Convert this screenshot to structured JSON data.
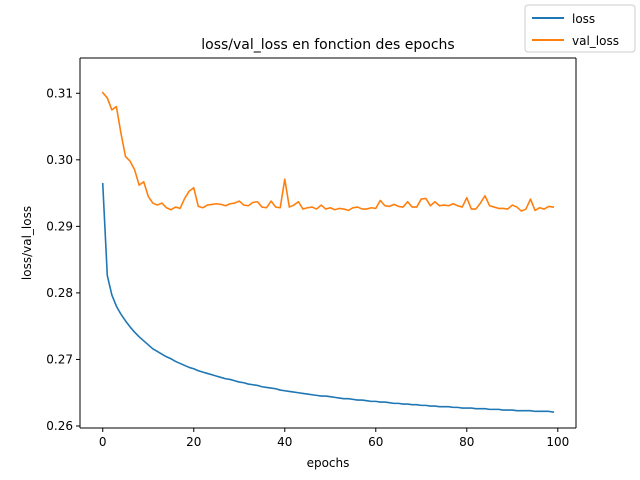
{
  "chart_data": {
    "type": "line",
    "title": "loss/val_loss en fonction des epochs",
    "xlabel": "epochs",
    "ylabel": "loss/val_loss",
    "xlim": [
      -5.0,
      104.0
    ],
    "ylim": [
      0.2597,
      0.3153
    ],
    "xticks": [
      0,
      20,
      40,
      60,
      80,
      100
    ],
    "xtick_labels": [
      "0",
      "20",
      "40",
      "60",
      "80",
      "100"
    ],
    "yticks": [
      0.26,
      0.27,
      0.28,
      0.29,
      0.3,
      0.31
    ],
    "ytick_labels": [
      "0.26",
      "0.27",
      "0.28",
      "0.29",
      "0.30",
      "0.31"
    ],
    "grid": false,
    "legend_position": "top-right (outside axes)",
    "x": [
      0,
      1,
      2,
      3,
      4,
      5,
      6,
      7,
      8,
      9,
      10,
      11,
      12,
      13,
      14,
      15,
      16,
      17,
      18,
      19,
      20,
      21,
      22,
      23,
      24,
      25,
      26,
      27,
      28,
      29,
      30,
      31,
      32,
      33,
      34,
      35,
      36,
      37,
      38,
      39,
      40,
      41,
      42,
      43,
      44,
      45,
      46,
      47,
      48,
      49,
      50,
      51,
      52,
      53,
      54,
      55,
      56,
      57,
      58,
      59,
      60,
      61,
      62,
      63,
      64,
      65,
      66,
      67,
      68,
      69,
      70,
      71,
      72,
      73,
      74,
      75,
      76,
      77,
      78,
      79,
      80,
      81,
      82,
      83,
      84,
      85,
      86,
      87,
      88,
      89,
      90,
      91,
      92,
      93,
      94,
      95,
      96,
      97,
      98,
      99
    ],
    "series": [
      {
        "name": "loss",
        "color": "#1f77b4",
        "values": [
          0.2964,
          0.2826,
          0.2797,
          0.278,
          0.2768,
          0.2758,
          0.2749,
          0.2741,
          0.2734,
          0.2728,
          0.2722,
          0.2716,
          0.2712,
          0.2708,
          0.2704,
          0.2701,
          0.2697,
          0.2694,
          0.2691,
          0.2688,
          0.2686,
          0.2683,
          0.2681,
          0.2679,
          0.2677,
          0.2675,
          0.2673,
          0.2671,
          0.267,
          0.2668,
          0.2666,
          0.2665,
          0.2663,
          0.2662,
          0.2661,
          0.2659,
          0.2658,
          0.2657,
          0.2656,
          0.2654,
          0.2653,
          0.2652,
          0.2651,
          0.265,
          0.2649,
          0.2648,
          0.2647,
          0.2646,
          0.2645,
          0.2645,
          0.2644,
          0.2643,
          0.2642,
          0.2641,
          0.2641,
          0.264,
          0.2639,
          0.2639,
          0.2638,
          0.2637,
          0.2637,
          0.2636,
          0.2636,
          0.2635,
          0.2634,
          0.2634,
          0.2633,
          0.2633,
          0.2632,
          0.2632,
          0.2631,
          0.2631,
          0.263,
          0.263,
          0.2629,
          0.2629,
          0.2629,
          0.2628,
          0.2628,
          0.2627,
          0.2627,
          0.2627,
          0.2626,
          0.2626,
          0.2626,
          0.2625,
          0.2625,
          0.2625,
          0.2624,
          0.2624,
          0.2624,
          0.2623,
          0.2623,
          0.2623,
          0.2623,
          0.2622,
          0.2622,
          0.2622,
          0.2622,
          0.2621
        ]
      },
      {
        "name": "val_loss",
        "color": "#ff7f0e",
        "values": [
          0.3101,
          0.3093,
          0.3075,
          0.308,
          0.304,
          0.3005,
          0.2998,
          0.2985,
          0.2962,
          0.2967,
          0.2945,
          0.2935,
          0.2932,
          0.2935,
          0.2928,
          0.2925,
          0.2929,
          0.2927,
          0.2942,
          0.2953,
          0.2958,
          0.293,
          0.2928,
          0.2932,
          0.2933,
          0.2934,
          0.2933,
          0.2931,
          0.2934,
          0.2935,
          0.2938,
          0.2932,
          0.2931,
          0.2936,
          0.2937,
          0.2929,
          0.2928,
          0.2938,
          0.2929,
          0.2928,
          0.2971,
          0.2929,
          0.2932,
          0.2937,
          0.2926,
          0.2928,
          0.2929,
          0.2926,
          0.2932,
          0.2926,
          0.2928,
          0.2925,
          0.2927,
          0.2926,
          0.2924,
          0.2928,
          0.2929,
          0.2926,
          0.2926,
          0.2928,
          0.2927,
          0.2939,
          0.2931,
          0.293,
          0.2933,
          0.293,
          0.2929,
          0.2937,
          0.2929,
          0.2929,
          0.2941,
          0.2942,
          0.2931,
          0.2937,
          0.2931,
          0.2932,
          0.2931,
          0.2934,
          0.2931,
          0.2929,
          0.2943,
          0.2926,
          0.2926,
          0.2935,
          0.2946,
          0.2931,
          0.2929,
          0.2927,
          0.2927,
          0.2926,
          0.2932,
          0.2929,
          0.2923,
          0.2926,
          0.2941,
          0.2924,
          0.2928,
          0.2926,
          0.293,
          0.2929
        ]
      }
    ]
  }
}
